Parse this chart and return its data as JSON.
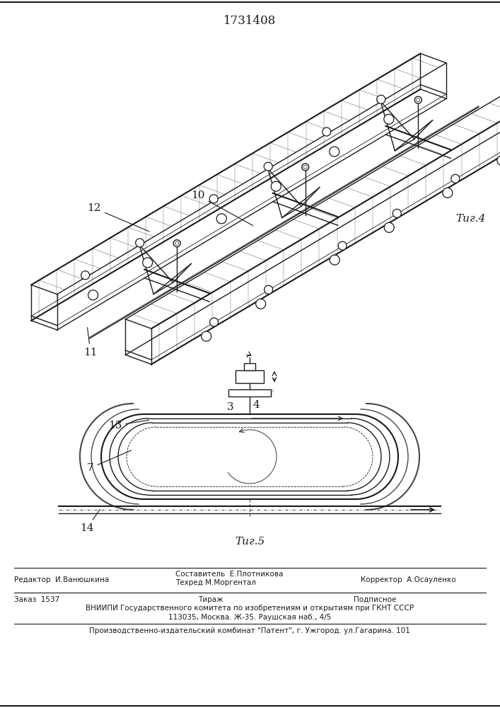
{
  "title_number": "1731408",
  "fig4_label": "Τиг.4",
  "fig5_label": "Τиг.5",
  "label_10": "10",
  "label_11": "11",
  "label_12": "12",
  "label_3": "3",
  "label_4": "4",
  "label_7": "7",
  "label_13": "13",
  "label_14": "14",
  "footer_line1_left": "Составитель  Е.Плотникова",
  "footer_line2_left": "Техред М.Моргентал",
  "footer_editor": "Редактор  И.Ванюшкина",
  "footer_corrector": "Корректор  А.Осауленко",
  "footer_order": "Заказ  1537",
  "footer_tirazh": "Тираж",
  "footer_podpisnoe": "Подписное",
  "footer_vniipи": "ВНИИПИ Государственного комитета по изобретениям и открытиям при ГКНТ СССР",
  "footer_address": "113035, Москва. Ж-35. Раушская наб., 4/5",
  "footer_publisher": "Производственно-издательский комбинат \"Патент\", г. Ужгород. ул.Гагарина. 101",
  "line_color": "#1a1a1a"
}
